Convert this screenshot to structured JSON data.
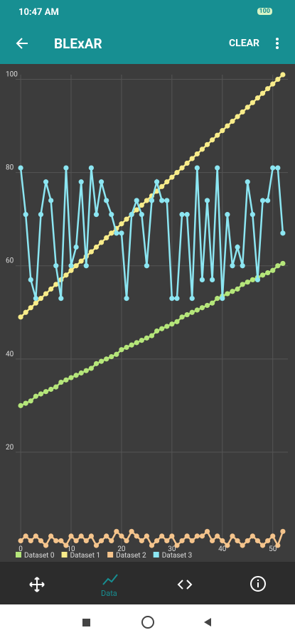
{
  "status_bar": {
    "time": "10:47 AM",
    "battery": "100"
  },
  "app_bar": {
    "title": "BLExAR",
    "action": "CLEAR"
  },
  "bottom_nav": {
    "selected_label": "Data"
  },
  "chart_data": {
    "type": "line",
    "x": [
      0,
      1,
      2,
      3,
      4,
      5,
      6,
      7,
      8,
      9,
      10,
      11,
      12,
      13,
      14,
      15,
      16,
      17,
      18,
      19,
      20,
      21,
      22,
      23,
      24,
      25,
      26,
      27,
      28,
      29,
      30,
      31,
      32,
      33,
      34,
      35,
      36,
      37,
      38,
      39,
      40,
      41,
      42,
      43,
      44,
      45,
      46,
      47,
      48,
      49,
      50,
      51,
      52
    ],
    "series": [
      {
        "name": "Dataset 0",
        "color": "#b5e67a",
        "values": [
          30,
          30.5,
          31,
          32,
          32.5,
          33,
          33.5,
          34,
          35,
          35.5,
          36,
          36.5,
          37,
          37.5,
          38,
          39,
          39.5,
          40,
          40.5,
          41,
          42,
          42.5,
          43,
          43.5,
          44,
          44.5,
          45,
          46,
          46.5,
          47,
          47.5,
          48,
          49,
          49.5,
          50,
          50.5,
          51,
          51.5,
          52,
          53,
          53.5,
          54,
          54.5,
          55,
          56,
          56.5,
          57,
          57.5,
          58,
          58.5,
          59,
          60,
          60.5
        ]
      },
      {
        "name": "Dataset 1",
        "color": "#f8ec8a",
        "values": [
          49,
          50,
          51,
          52,
          53,
          54,
          55,
          56,
          57,
          58,
          59,
          60,
          61,
          62,
          63,
          64,
          65,
          66,
          67,
          68,
          69,
          70,
          71,
          72,
          73,
          74,
          75,
          76,
          77,
          78,
          79,
          80,
          81,
          82,
          83,
          84,
          85,
          86,
          87,
          88,
          89,
          90,
          91,
          92,
          93,
          94,
          95,
          96,
          97,
          98,
          99,
          100,
          101
        ]
      },
      {
        "name": "Dataset 2",
        "color": "#f5c48c",
        "values": [
          1,
          2,
          1,
          2,
          1,
          0,
          2,
          1,
          1,
          0,
          2,
          1,
          2,
          1,
          2,
          0,
          1,
          2,
          1,
          3,
          2,
          1,
          3,
          2,
          1,
          2,
          0,
          1,
          2,
          1,
          2,
          0,
          1,
          2,
          1,
          2,
          2,
          3,
          1,
          2,
          1,
          0,
          2,
          1,
          0,
          1,
          2,
          1,
          0,
          1,
          2,
          0,
          3
        ]
      },
      {
        "name": "Dataset 3",
        "color": "#8ce6f2",
        "values": [
          81,
          71,
          57,
          53,
          71,
          78,
          74,
          60,
          53,
          81,
          60,
          64,
          78,
          60,
          81,
          71,
          78,
          74,
          71,
          67,
          67,
          53,
          71,
          74,
          71,
          60,
          74,
          78,
          74,
          74,
          53,
          53,
          71,
          71,
          53,
          81,
          57,
          74,
          57,
          81,
          53,
          71,
          60,
          64,
          60,
          78,
          71,
          57,
          74,
          74,
          81,
          81,
          67
        ]
      }
    ],
    "xlim": [
      -1,
      53
    ],
    "ylim": [
      0,
      101
    ],
    "xticks": [
      0,
      10,
      20,
      30,
      40,
      50
    ],
    "yticks": [
      20,
      40,
      60,
      80,
      100
    ],
    "grid": true,
    "legend": "bottom-left"
  }
}
